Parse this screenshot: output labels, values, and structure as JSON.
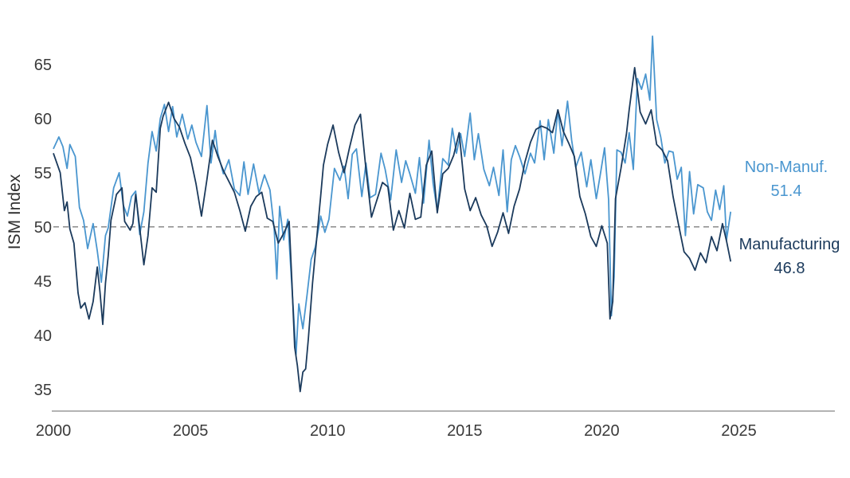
{
  "chart_data": {
    "type": "line",
    "ylabel": "ISM Index",
    "xlim": [
      2000,
      2028.5
    ],
    "ylim": [
      33,
      68
    ],
    "x_ticks": [
      2000,
      2005,
      2010,
      2015,
      2020,
      2025
    ],
    "y_ticks": [
      35,
      40,
      45,
      50,
      55,
      60,
      65
    ],
    "reference_line": 50,
    "grid": false,
    "series": [
      {
        "name": "Manufacturing",
        "end_value": "46.8",
        "color": "#1b3a5c",
        "points": [
          [
            2000.0,
            56.8
          ],
          [
            2000.25,
            55.0
          ],
          [
            2000.4,
            51.5
          ],
          [
            2000.5,
            52.3
          ],
          [
            2000.6,
            49.8
          ],
          [
            2000.75,
            48.5
          ],
          [
            2000.9,
            43.9
          ],
          [
            2001.0,
            42.5
          ],
          [
            2001.15,
            43.0
          ],
          [
            2001.3,
            41.5
          ],
          [
            2001.45,
            43.1
          ],
          [
            2001.6,
            46.3
          ],
          [
            2001.7,
            44.0
          ],
          [
            2001.8,
            41.0
          ],
          [
            2001.9,
            44.8
          ],
          [
            2002.0,
            47.3
          ],
          [
            2002.1,
            50.6
          ],
          [
            2002.3,
            53.0
          ],
          [
            2002.5,
            53.6
          ],
          [
            2002.6,
            50.5
          ],
          [
            2002.8,
            49.7
          ],
          [
            2002.9,
            50.3
          ],
          [
            2003.0,
            53.0
          ],
          [
            2003.15,
            49.9
          ],
          [
            2003.3,
            46.5
          ],
          [
            2003.45,
            49.2
          ],
          [
            2003.6,
            53.6
          ],
          [
            2003.75,
            53.2
          ],
          [
            2003.9,
            59.1
          ],
          [
            2004.0,
            60.2
          ],
          [
            2004.2,
            61.5
          ],
          [
            2004.4,
            60.0
          ],
          [
            2004.6,
            59.2
          ],
          [
            2004.8,
            57.7
          ],
          [
            2005.0,
            56.4
          ],
          [
            2005.2,
            54.0
          ],
          [
            2005.4,
            51.0
          ],
          [
            2005.6,
            54.4
          ],
          [
            2005.8,
            58.0
          ],
          [
            2006.0,
            56.5
          ],
          [
            2006.2,
            55.2
          ],
          [
            2006.4,
            54.2
          ],
          [
            2006.6,
            53.2
          ],
          [
            2006.8,
            51.5
          ],
          [
            2007.0,
            49.6
          ],
          [
            2007.2,
            51.9
          ],
          [
            2007.4,
            52.8
          ],
          [
            2007.6,
            53.2
          ],
          [
            2007.8,
            50.8
          ],
          [
            2008.0,
            50.5
          ],
          [
            2008.2,
            48.5
          ],
          [
            2008.4,
            49.4
          ],
          [
            2008.6,
            50.5
          ],
          [
            2008.7,
            44.8
          ],
          [
            2008.8,
            38.9
          ],
          [
            2008.9,
            37.2
          ],
          [
            2009.0,
            34.8
          ],
          [
            2009.1,
            36.6
          ],
          [
            2009.2,
            36.9
          ],
          [
            2009.3,
            39.7
          ],
          [
            2009.45,
            44.8
          ],
          [
            2009.6,
            48.8
          ],
          [
            2009.75,
            52.9
          ],
          [
            2009.85,
            55.7
          ],
          [
            2010.0,
            57.6
          ],
          [
            2010.2,
            59.4
          ],
          [
            2010.4,
            56.9
          ],
          [
            2010.6,
            55.0
          ],
          [
            2010.8,
            57.3
          ],
          [
            2011.0,
            59.4
          ],
          [
            2011.2,
            60.4
          ],
          [
            2011.4,
            55.3
          ],
          [
            2011.6,
            50.9
          ],
          [
            2011.8,
            52.5
          ],
          [
            2012.0,
            54.1
          ],
          [
            2012.2,
            53.7
          ],
          [
            2012.4,
            49.7
          ],
          [
            2012.6,
            51.5
          ],
          [
            2012.8,
            49.9
          ],
          [
            2013.0,
            53.1
          ],
          [
            2013.2,
            50.7
          ],
          [
            2013.4,
            50.9
          ],
          [
            2013.6,
            55.7
          ],
          [
            2013.8,
            57.0
          ],
          [
            2014.0,
            51.3
          ],
          [
            2014.2,
            54.9
          ],
          [
            2014.4,
            55.4
          ],
          [
            2014.6,
            56.6
          ],
          [
            2014.8,
            58.7
          ],
          [
            2015.0,
            53.5
          ],
          [
            2015.2,
            51.5
          ],
          [
            2015.4,
            52.7
          ],
          [
            2015.6,
            51.1
          ],
          [
            2015.8,
            50.1
          ],
          [
            2016.0,
            48.2
          ],
          [
            2016.2,
            49.5
          ],
          [
            2016.4,
            51.3
          ],
          [
            2016.6,
            49.4
          ],
          [
            2016.8,
            51.9
          ],
          [
            2017.0,
            53.5
          ],
          [
            2017.2,
            56.0
          ],
          [
            2017.4,
            57.8
          ],
          [
            2017.6,
            59.0
          ],
          [
            2017.8,
            59.3
          ],
          [
            2018.0,
            59.1
          ],
          [
            2018.2,
            58.7
          ],
          [
            2018.4,
            60.8
          ],
          [
            2018.6,
            58.8
          ],
          [
            2018.8,
            57.7
          ],
          [
            2019.0,
            56.5
          ],
          [
            2019.2,
            52.8
          ],
          [
            2019.4,
            51.2
          ],
          [
            2019.6,
            49.1
          ],
          [
            2019.8,
            48.2
          ],
          [
            2020.0,
            50.1
          ],
          [
            2020.2,
            48.5
          ],
          [
            2020.3,
            41.5
          ],
          [
            2020.4,
            43.1
          ],
          [
            2020.5,
            52.6
          ],
          [
            2020.7,
            55.4
          ],
          [
            2020.9,
            58.6
          ],
          [
            2021.0,
            60.8
          ],
          [
            2021.2,
            64.7
          ],
          [
            2021.4,
            60.6
          ],
          [
            2021.6,
            59.5
          ],
          [
            2021.8,
            60.8
          ],
          [
            2022.0,
            57.6
          ],
          [
            2022.2,
            57.1
          ],
          [
            2022.4,
            56.1
          ],
          [
            2022.6,
            52.8
          ],
          [
            2022.8,
            50.2
          ],
          [
            2023.0,
            47.7
          ],
          [
            2023.2,
            47.1
          ],
          [
            2023.4,
            46.0
          ],
          [
            2023.6,
            47.6
          ],
          [
            2023.8,
            46.7
          ],
          [
            2024.0,
            49.1
          ],
          [
            2024.2,
            47.8
          ],
          [
            2024.4,
            50.3
          ],
          [
            2024.55,
            48.7
          ],
          [
            2024.7,
            46.8
          ]
        ]
      },
      {
        "name": "Non-Manuf.",
        "end_value": "51.4",
        "color": "#4a96cf",
        "points": [
          [
            2000.0,
            57.2
          ],
          [
            2000.2,
            58.3
          ],
          [
            2000.35,
            57.4
          ],
          [
            2000.5,
            55.4
          ],
          [
            2000.6,
            57.6
          ],
          [
            2000.8,
            56.5
          ],
          [
            2000.95,
            51.8
          ],
          [
            2001.1,
            50.6
          ],
          [
            2001.25,
            48.0
          ],
          [
            2001.45,
            50.3
          ],
          [
            2001.6,
            47.8
          ],
          [
            2001.75,
            44.9
          ],
          [
            2001.9,
            49.2
          ],
          [
            2002.0,
            49.9
          ],
          [
            2002.2,
            53.6
          ],
          [
            2002.4,
            55.0
          ],
          [
            2002.55,
            52.0
          ],
          [
            2002.7,
            51.0
          ],
          [
            2002.85,
            52.8
          ],
          [
            2003.0,
            53.3
          ],
          [
            2003.15,
            49.3
          ],
          [
            2003.3,
            51.4
          ],
          [
            2003.45,
            55.9
          ],
          [
            2003.6,
            58.8
          ],
          [
            2003.75,
            57.0
          ],
          [
            2003.9,
            60.0
          ],
          [
            2004.05,
            61.3
          ],
          [
            2004.2,
            58.8
          ],
          [
            2004.35,
            61.1
          ],
          [
            2004.5,
            58.3
          ],
          [
            2004.7,
            60.4
          ],
          [
            2004.9,
            58.1
          ],
          [
            2005.05,
            59.4
          ],
          [
            2005.2,
            57.8
          ],
          [
            2005.4,
            56.5
          ],
          [
            2005.6,
            61.2
          ],
          [
            2005.75,
            55.9
          ],
          [
            2005.9,
            58.9
          ],
          [
            2006.0,
            56.8
          ],
          [
            2006.2,
            54.9
          ],
          [
            2006.4,
            56.2
          ],
          [
            2006.6,
            53.5
          ],
          [
            2006.8,
            52.9
          ],
          [
            2006.95,
            56.0
          ],
          [
            2007.1,
            53.0
          ],
          [
            2007.3,
            55.8
          ],
          [
            2007.5,
            53.1
          ],
          [
            2007.7,
            54.8
          ],
          [
            2007.9,
            53.4
          ],
          [
            2008.05,
            49.9
          ],
          [
            2008.15,
            45.2
          ],
          [
            2008.25,
            51.9
          ],
          [
            2008.4,
            48.8
          ],
          [
            2008.55,
            50.7
          ],
          [
            2008.7,
            44.4
          ],
          [
            2008.85,
            38.2
          ],
          [
            2008.95,
            42.9
          ],
          [
            2009.1,
            40.6
          ],
          [
            2009.25,
            43.7
          ],
          [
            2009.4,
            47.0
          ],
          [
            2009.55,
            48.1
          ],
          [
            2009.75,
            51.0
          ],
          [
            2009.9,
            49.5
          ],
          [
            2010.05,
            50.7
          ],
          [
            2010.25,
            55.4
          ],
          [
            2010.45,
            54.3
          ],
          [
            2010.6,
            55.6
          ],
          [
            2010.75,
            52.6
          ],
          [
            2010.9,
            56.7
          ],
          [
            2011.05,
            57.2
          ],
          [
            2011.25,
            52.8
          ],
          [
            2011.4,
            55.9
          ],
          [
            2011.55,
            52.7
          ],
          [
            2011.75,
            53.0
          ],
          [
            2011.95,
            56.8
          ],
          [
            2012.1,
            55.3
          ],
          [
            2012.3,
            52.5
          ],
          [
            2012.5,
            57.1
          ],
          [
            2012.7,
            54.1
          ],
          [
            2012.85,
            56.1
          ],
          [
            2013.0,
            54.9
          ],
          [
            2013.2,
            53.1
          ],
          [
            2013.35,
            56.4
          ],
          [
            2013.5,
            52.2
          ],
          [
            2013.7,
            58.0
          ],
          [
            2013.85,
            54.0
          ],
          [
            2014.0,
            51.5
          ],
          [
            2014.2,
            56.3
          ],
          [
            2014.4,
            55.7
          ],
          [
            2014.55,
            59.1
          ],
          [
            2014.7,
            56.8
          ],
          [
            2014.85,
            58.6
          ],
          [
            2015.0,
            56.5
          ],
          [
            2015.2,
            60.5
          ],
          [
            2015.35,
            56.2
          ],
          [
            2015.5,
            58.6
          ],
          [
            2015.7,
            55.3
          ],
          [
            2015.9,
            53.8
          ],
          [
            2016.05,
            55.5
          ],
          [
            2016.25,
            52.9
          ],
          [
            2016.4,
            57.1
          ],
          [
            2016.55,
            51.4
          ],
          [
            2016.7,
            56.2
          ],
          [
            2016.85,
            57.5
          ],
          [
            2017.0,
            56.5
          ],
          [
            2017.2,
            54.9
          ],
          [
            2017.4,
            56.8
          ],
          [
            2017.55,
            55.9
          ],
          [
            2017.75,
            59.8
          ],
          [
            2017.9,
            56.2
          ],
          [
            2018.05,
            59.9
          ],
          [
            2018.25,
            56.8
          ],
          [
            2018.4,
            60.8
          ],
          [
            2018.55,
            57.5
          ],
          [
            2018.75,
            61.6
          ],
          [
            2018.9,
            58.0
          ],
          [
            2019.05,
            55.5
          ],
          [
            2019.25,
            56.9
          ],
          [
            2019.45,
            53.7
          ],
          [
            2019.6,
            56.2
          ],
          [
            2019.8,
            52.6
          ],
          [
            2019.95,
            54.9
          ],
          [
            2020.1,
            57.3
          ],
          [
            2020.25,
            52.5
          ],
          [
            2020.35,
            41.8
          ],
          [
            2020.45,
            45.4
          ],
          [
            2020.55,
            57.1
          ],
          [
            2020.7,
            56.9
          ],
          [
            2020.85,
            55.9
          ],
          [
            2021.0,
            58.7
          ],
          [
            2021.15,
            55.3
          ],
          [
            2021.3,
            63.7
          ],
          [
            2021.45,
            62.7
          ],
          [
            2021.6,
            64.1
          ],
          [
            2021.75,
            61.7
          ],
          [
            2021.85,
            67.6
          ],
          [
            2022.0,
            59.9
          ],
          [
            2022.15,
            58.3
          ],
          [
            2022.3,
            55.9
          ],
          [
            2022.45,
            57.0
          ],
          [
            2022.6,
            56.9
          ],
          [
            2022.75,
            54.4
          ],
          [
            2022.9,
            55.5
          ],
          [
            2023.05,
            49.2
          ],
          [
            2023.2,
            55.1
          ],
          [
            2023.35,
            51.2
          ],
          [
            2023.5,
            53.9
          ],
          [
            2023.7,
            53.6
          ],
          [
            2023.85,
            51.4
          ],
          [
            2024.0,
            50.6
          ],
          [
            2024.15,
            53.4
          ],
          [
            2024.3,
            51.6
          ],
          [
            2024.45,
            53.8
          ],
          [
            2024.55,
            48.8
          ],
          [
            2024.7,
            51.4
          ]
        ]
      }
    ]
  }
}
